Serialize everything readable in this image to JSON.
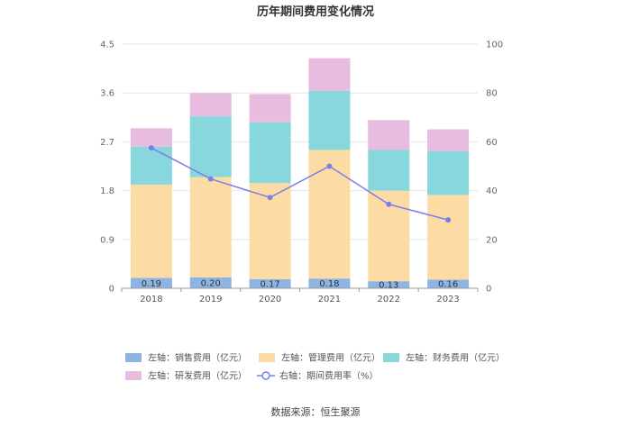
{
  "chart_data": {
    "type": "bar",
    "stacked": true,
    "title": "历年期间费用变化情况",
    "categories": [
      "2018",
      "2019",
      "2020",
      "2021",
      "2022",
      "2023"
    ],
    "left_axis": {
      "ticks": [
        "0",
        "0.9",
        "1.8",
        "2.7",
        "3.6",
        "4.5"
      ],
      "ylim": [
        0,
        4.5
      ]
    },
    "right_axis": {
      "ticks": [
        "0",
        "20",
        "40",
        "60",
        "80",
        "100"
      ],
      "ylim": [
        0,
        100
      ]
    },
    "series": [
      {
        "name": "左轴：销售费用（亿元）",
        "axis": "left",
        "color": "#8eb4e3",
        "values": [
          0.19,
          0.2,
          0.17,
          0.18,
          0.13,
          0.16
        ],
        "labels": [
          "0.19",
          "0.20",
          "0.17",
          "0.18",
          "0.13",
          "0.16"
        ]
      },
      {
        "name": "左轴：管理费用（亿元）",
        "axis": "left",
        "color": "#fddba5",
        "values": [
          1.72,
          1.85,
          1.77,
          2.37,
          1.67,
          1.56
        ]
      },
      {
        "name": "左轴：财务费用（亿元）",
        "axis": "left",
        "color": "#87d7dd",
        "values": [
          0.7,
          1.12,
          1.12,
          1.09,
          0.75,
          0.81
        ]
      },
      {
        "name": "左轴：研发费用（亿元）",
        "axis": "left",
        "color": "#e8bcdf",
        "values": [
          0.34,
          0.43,
          0.52,
          0.6,
          0.55,
          0.4
        ]
      },
      {
        "name": "右轴：期间费用率（%）",
        "axis": "right",
        "type": "line",
        "color": "#7b7fe8",
        "values": [
          57.5,
          44.8,
          37.2,
          50.0,
          34.4,
          28.0
        ]
      }
    ],
    "source": "数据来源：恒生聚源"
  }
}
